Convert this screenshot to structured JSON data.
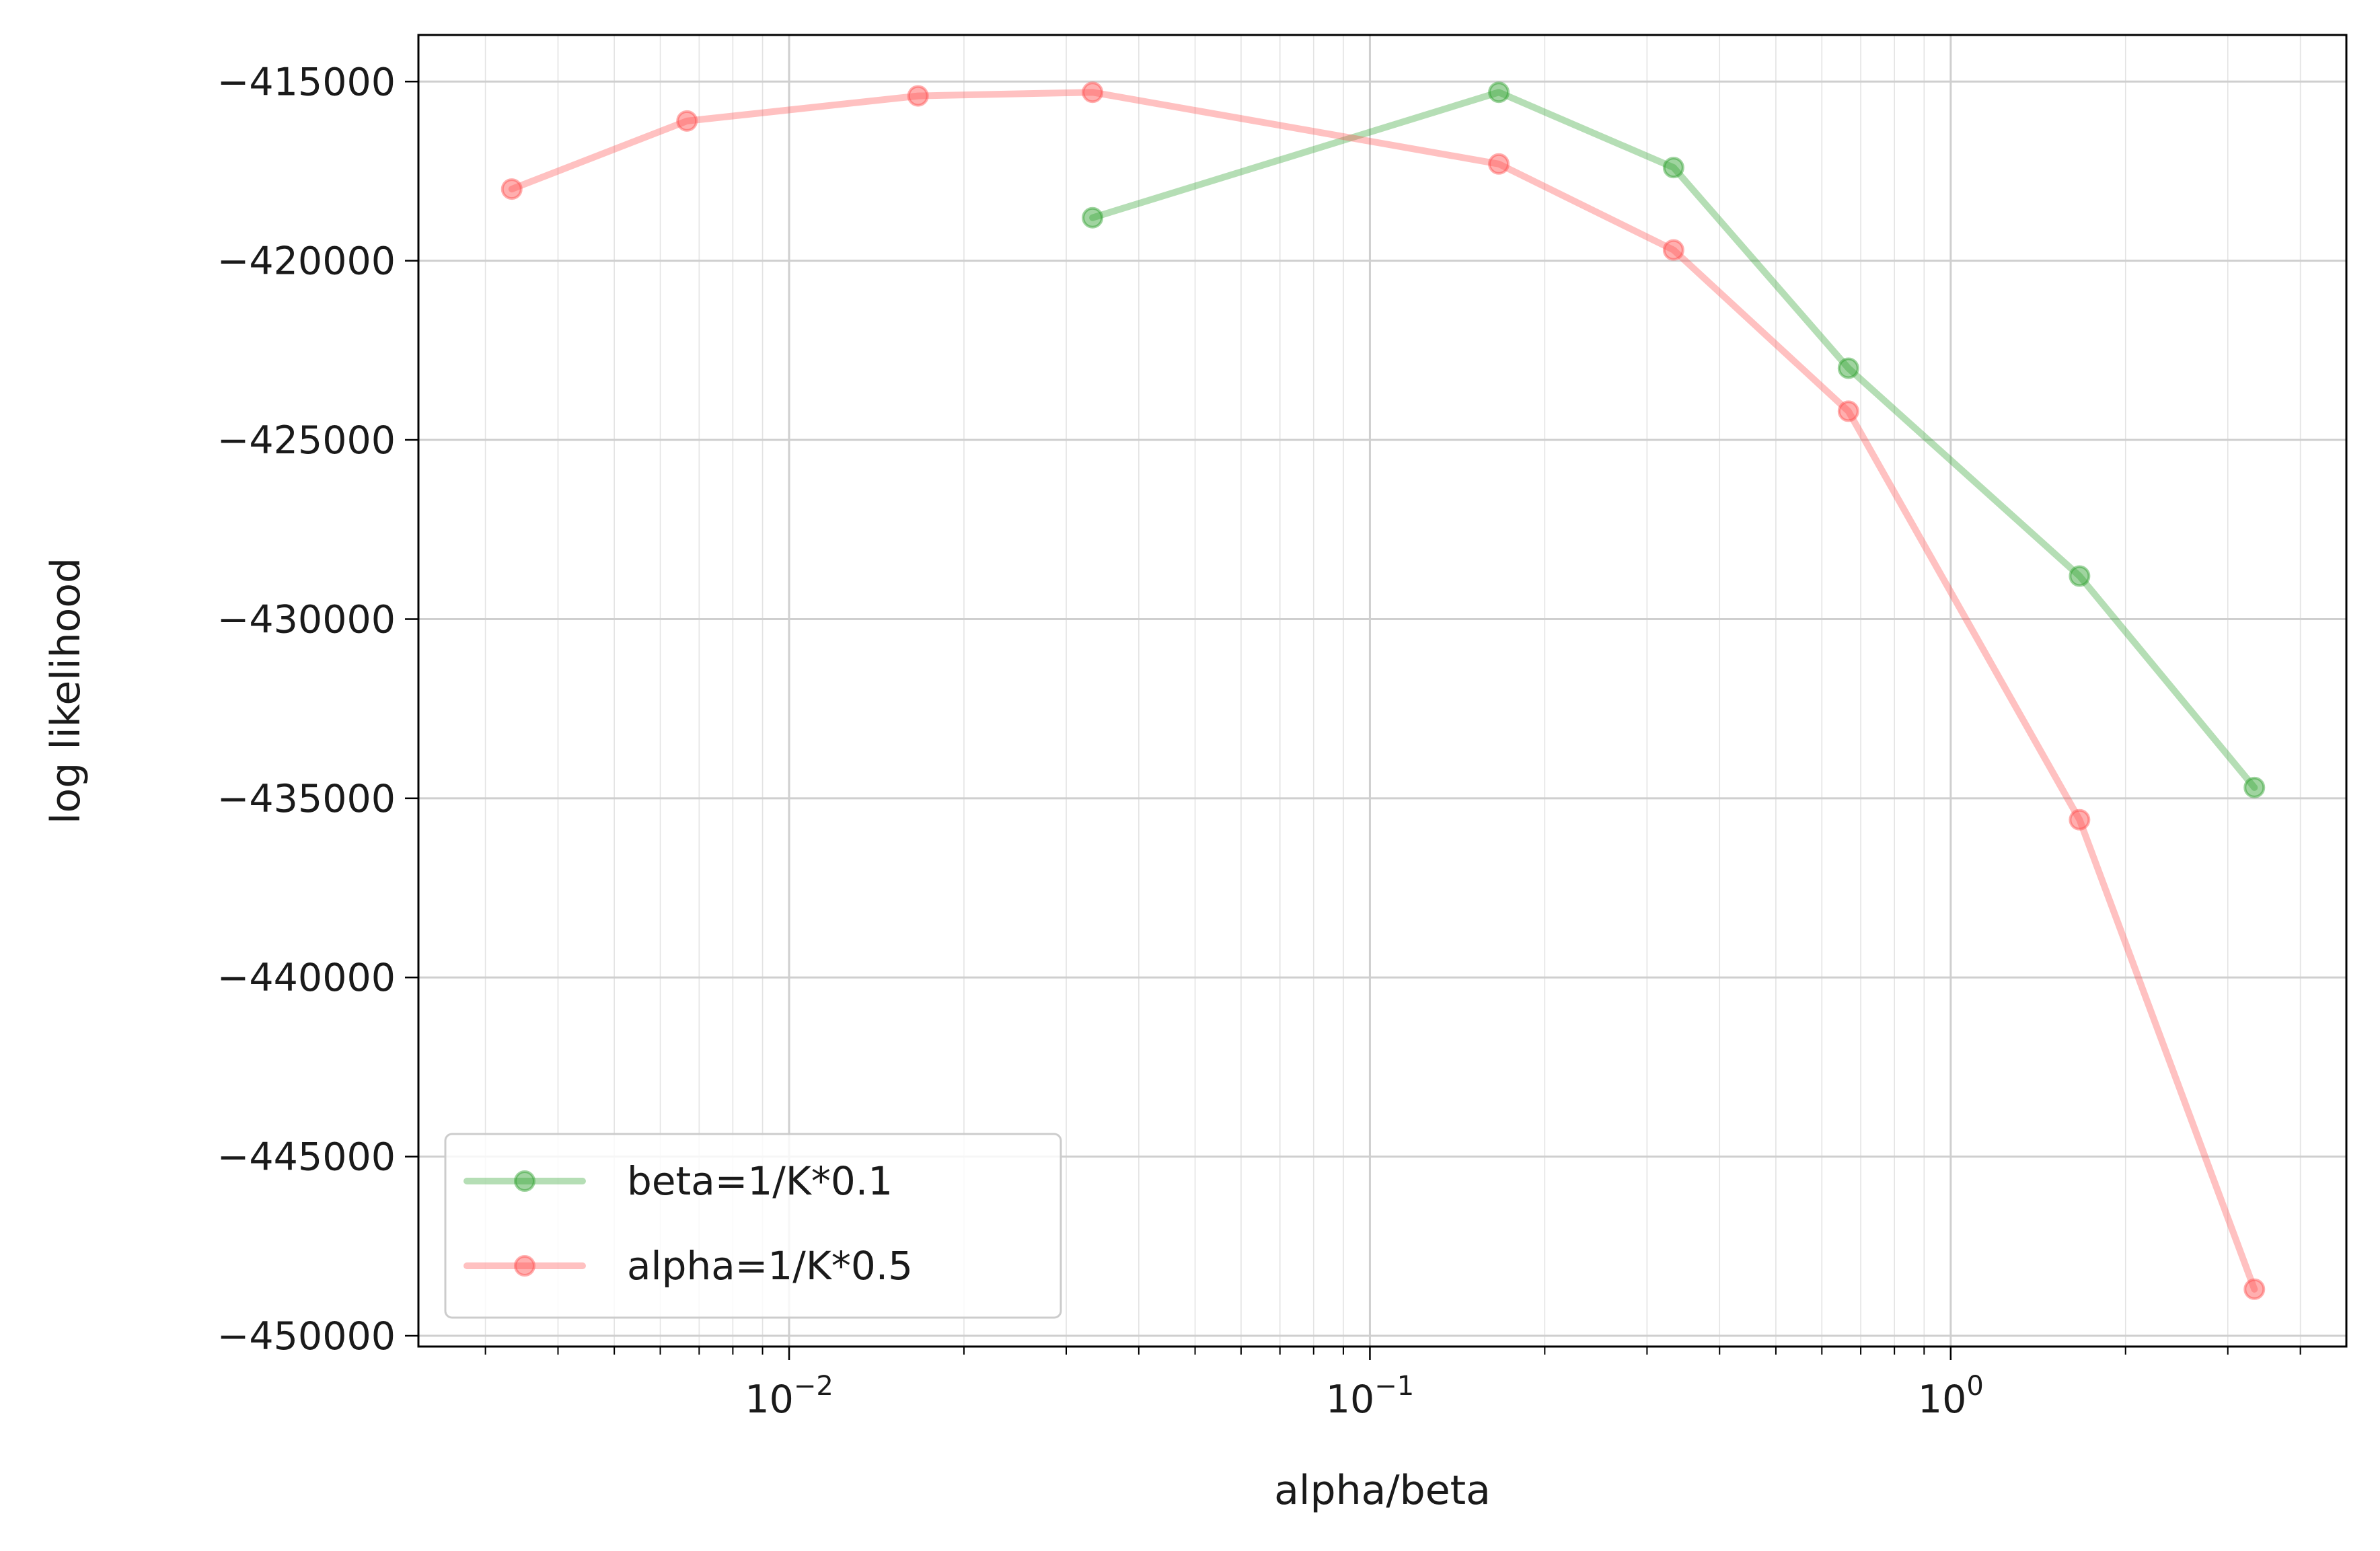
{
  "chart_data": {
    "type": "line",
    "title": "",
    "xlabel": "alpha/beta",
    "ylabel": "log likelihood",
    "xscale": "log",
    "xlim": [
      0.0023,
      4.8
    ],
    "ylim": [
      -450300,
      -413700
    ],
    "grid": true,
    "legend_position": "lower-left",
    "x_ticks": [
      {
        "value": 0.01,
        "base": "10",
        "exp": "−2"
      },
      {
        "value": 0.1,
        "base": "10",
        "exp": "−1"
      },
      {
        "value": 1,
        "base": "10",
        "exp": "0"
      }
    ],
    "y_ticks": [
      {
        "value": -415000,
        "label": "−415000"
      },
      {
        "value": -420000,
        "label": "−420000"
      },
      {
        "value": -425000,
        "label": "−425000"
      },
      {
        "value": -430000,
        "label": "−430000"
      },
      {
        "value": -435000,
        "label": "−435000"
      },
      {
        "value": -440000,
        "label": "−440000"
      },
      {
        "value": -445000,
        "label": "−445000"
      },
      {
        "value": -450000,
        "label": "−450000"
      }
    ],
    "series": [
      {
        "name": "beta=1/K*0.1",
        "color": "#2ca02c",
        "x": [
          0.0333,
          0.1667,
          0.3333,
          0.6667,
          1.6667,
          3.3333
        ],
        "y": [
          -418800,
          -415300,
          -417400,
          -423000,
          -428800,
          -434700
        ]
      },
      {
        "name": "alpha=1/K*0.5",
        "color": "#ff4d4d",
        "x": [
          0.00333,
          0.00667,
          0.01667,
          0.0333,
          0.1667,
          0.3333,
          0.6667,
          1.6667,
          3.3333
        ],
        "y": [
          -418000,
          -416100,
          -415400,
          -415300,
          -417300,
          -419700,
          -424200,
          -435600,
          -448700
        ]
      }
    ]
  }
}
